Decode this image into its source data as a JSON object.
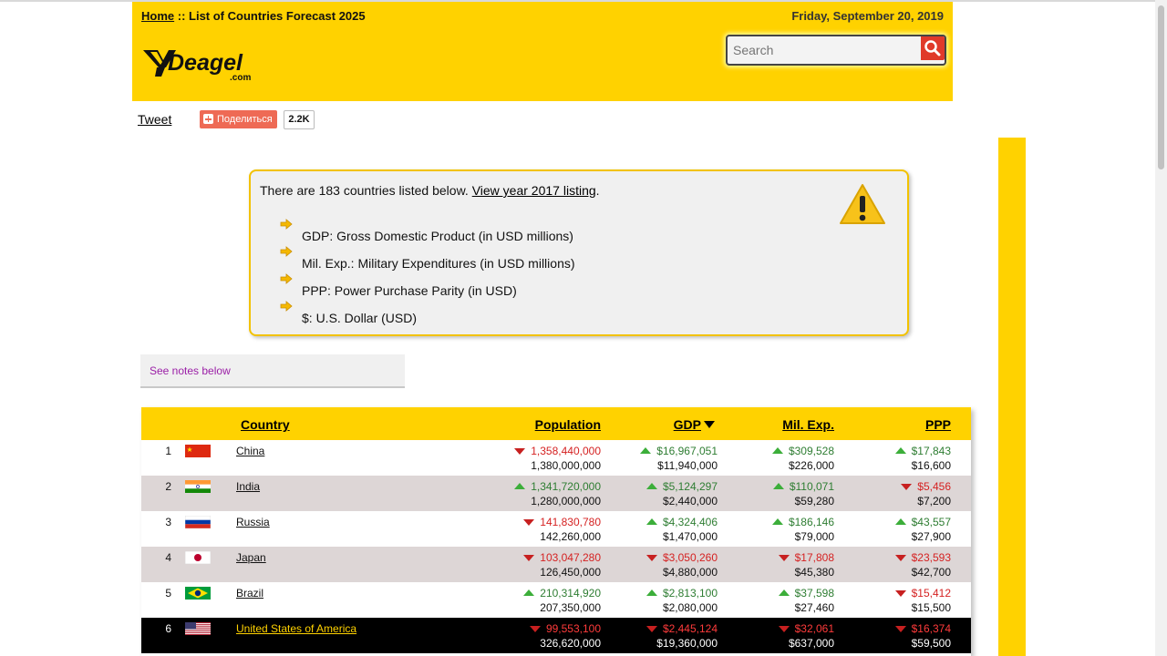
{
  "header": {
    "breadcrumb_home": "Home",
    "breadcrumb_separator": " :: ",
    "breadcrumb_current": "List of Countries Forecast 2025",
    "date": "Friday, September 20, 2019",
    "logo_text": "Deagel",
    "logo_suffix": ".com",
    "search_placeholder": "Search"
  },
  "social": {
    "tweet_label": "Tweet",
    "share_label": "Поделиться",
    "share_count": "2.2K"
  },
  "info": {
    "intro_prefix": "There are 183 countries listed below. ",
    "intro_link": "View year 2017 listing",
    "intro_suffix": ".",
    "legend": [
      "GDP: Gross Domestic Product (in USD millions)",
      "Mil. Exp.: Military Expenditures (in USD millions)",
      "PPP: Power Purchase Parity (in USD)",
      "$: U.S. Dollar (USD)"
    ]
  },
  "notes_link": "See notes below",
  "table": {
    "headers": {
      "country": "Country",
      "population": "Population",
      "gdp": "GDP",
      "milexp": "Mil. Exp.",
      "ppp": "PPP"
    },
    "rows": [
      {
        "rank": "1",
        "country": "China",
        "pop": "1,358,440,000",
        "pop2": "1,380,000,000",
        "pop_dir": "down",
        "gdp": "$16,967,051",
        "gdp2": "$11,940,000",
        "gdp_dir": "up",
        "mil": "$309,528",
        "mil2": "$226,000",
        "mil_dir": "up",
        "ppp": "$17,843",
        "ppp2": "$16,600",
        "ppp_dir": "up"
      },
      {
        "rank": "2",
        "country": "India",
        "pop": "1,341,720,000",
        "pop2": "1,280,000,000",
        "pop_dir": "up",
        "gdp": "$5,124,297",
        "gdp2": "$2,440,000",
        "gdp_dir": "up",
        "mil": "$110,071",
        "mil2": "$59,280",
        "mil_dir": "up",
        "ppp": "$5,456",
        "ppp2": "$7,200",
        "ppp_dir": "down"
      },
      {
        "rank": "3",
        "country": "Russia",
        "pop": "141,830,780",
        "pop2": "142,260,000",
        "pop_dir": "down",
        "gdp": "$4,324,406",
        "gdp2": "$1,470,000",
        "gdp_dir": "up",
        "mil": "$186,146",
        "mil2": "$79,000",
        "mil_dir": "up",
        "ppp": "$43,557",
        "ppp2": "$27,900",
        "ppp_dir": "up"
      },
      {
        "rank": "4",
        "country": "Japan",
        "pop": "103,047,280",
        "pop2": "126,450,000",
        "pop_dir": "down",
        "gdp": "$3,050,260",
        "gdp2": "$4,880,000",
        "gdp_dir": "down",
        "mil": "$17,808",
        "mil2": "$45,380",
        "mil_dir": "down",
        "ppp": "$23,593",
        "ppp2": "$42,700",
        "ppp_dir": "down"
      },
      {
        "rank": "5",
        "country": "Brazil",
        "pop": "210,314,920",
        "pop2": "207,350,000",
        "pop_dir": "up",
        "gdp": "$2,813,100",
        "gdp2": "$2,080,000",
        "gdp_dir": "up",
        "mil": "$37,598",
        "mil2": "$27,460",
        "mil_dir": "up",
        "ppp": "$15,412",
        "ppp2": "$15,500",
        "ppp_dir": "down"
      },
      {
        "rank": "6",
        "country": "United States of America",
        "pop": "99,553,100",
        "pop2": "326,620,000",
        "pop_dir": "down",
        "gdp": "$2,445,124",
        "gdp2": "$19,360,000",
        "gdp_dir": "down",
        "mil": "$32,061",
        "mil2": "$637,000",
        "mil_dir": "down",
        "ppp": "$16,374",
        "ppp2": "$59,500",
        "ppp_dir": "down"
      }
    ]
  },
  "colors": {
    "brand_yellow": "#ffd200",
    "search_button": "#e03a2a",
    "share_button": "#ee6a55",
    "up": "#3cae3a",
    "down": "#c72020"
  }
}
